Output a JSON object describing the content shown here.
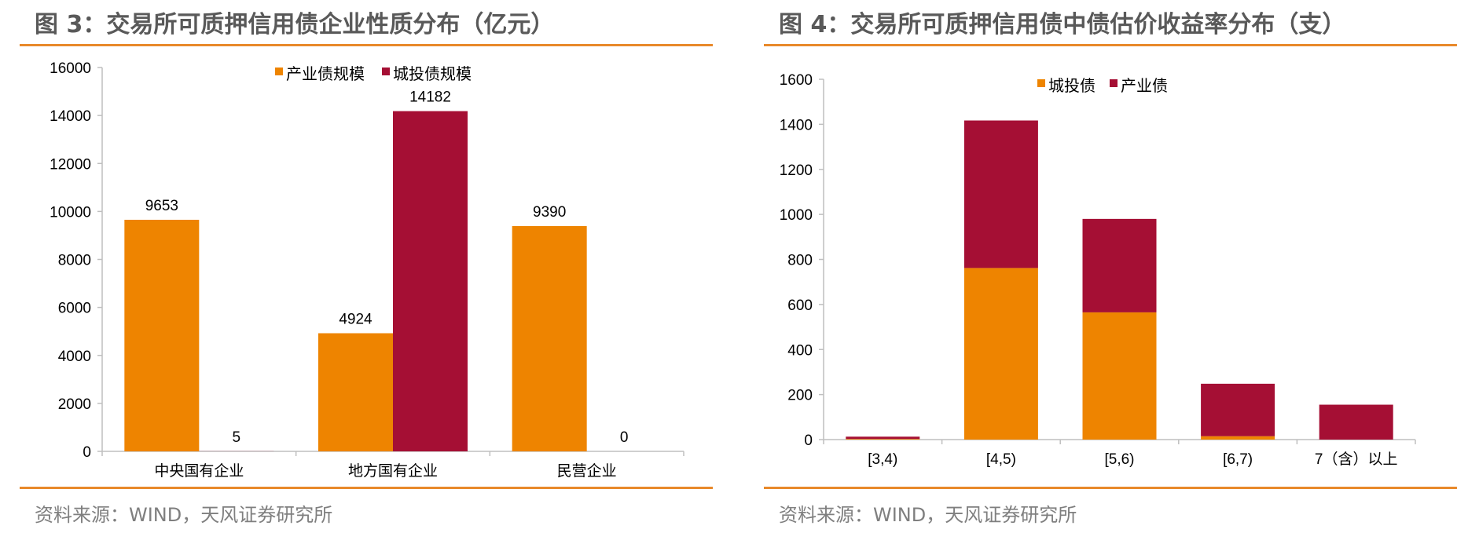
{
  "panels": [
    {
      "title": "图 3：交易所可质押信用债企业性质分布（亿元）",
      "source": "资料来源：WIND，天风证券研究所",
      "chart_data": {
        "type": "bar",
        "categories": [
          "中央国有企业",
          "地方国有企业",
          "民营企业"
        ],
        "series": [
          {
            "name": "产业债规模",
            "color": "#ee8400",
            "values": [
              9653,
              4924,
              9390
            ]
          },
          {
            "name": "城投债规模",
            "color": "#a50f34",
            "values": [
              5,
              14182,
              0
            ]
          }
        ],
        "data_labels": [
          [
            "9653",
            "4924",
            "9390"
          ],
          [
            "5",
            "14182",
            "0"
          ]
        ],
        "ylim": [
          0,
          16000
        ],
        "yticks": [
          0,
          2000,
          4000,
          6000,
          8000,
          10000,
          12000,
          14000,
          16000
        ],
        "legend": "top-center",
        "grid": false
      }
    },
    {
      "title": "图 4：交易所可质押信用债中债估价收益率分布（支）",
      "source": "资料来源：WIND，天风证券研究所",
      "chart_data": {
        "type": "bar",
        "stacked": true,
        "categories": [
          "[3,4)",
          "[4,5)",
          "[5,6)",
          "[6,7)",
          "7（含）以上"
        ],
        "series": [
          {
            "name": "城投债",
            "color": "#ee8400",
            "values": [
              3,
              762,
              565,
              15,
              0
            ]
          },
          {
            "name": "产业债",
            "color": "#a50f34",
            "values": [
              10,
              655,
              415,
              233,
              155
            ]
          }
        ],
        "ylim": [
          0,
          1600
        ],
        "yticks": [
          0,
          200,
          400,
          600,
          800,
          1000,
          1200,
          1400,
          1600
        ],
        "legend": "top-center",
        "grid": false
      }
    }
  ]
}
